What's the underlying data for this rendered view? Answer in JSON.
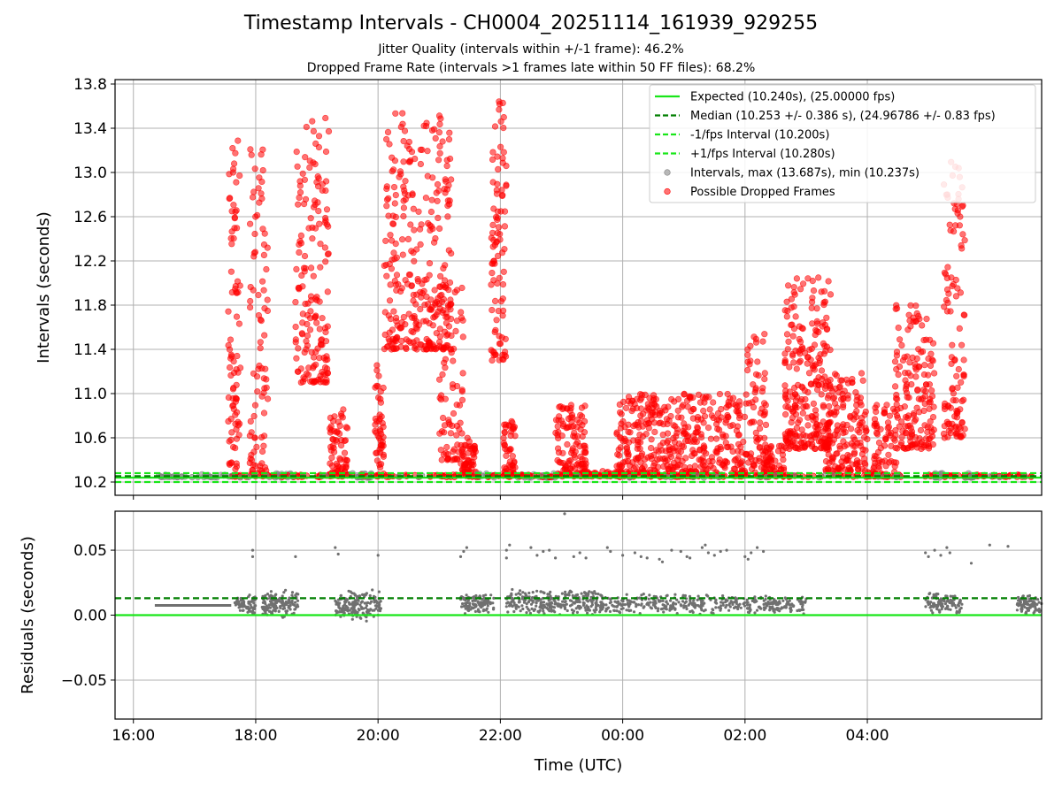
{
  "title": "Timestamp Intervals - CH0004_20251114_161939_929255",
  "subtitle1": "Jitter Quality (intervals within +/-1 frame): 46.2%",
  "subtitle2": "Dropped Frame Rate (intervals >1 frames late within 50 FF files): 68.2%",
  "colors": {
    "expected": "#19e619",
    "median": "#007f00",
    "interval_lines": "#19e619",
    "intervals": "#808080",
    "dropped": "#ff0000",
    "residuals": "#707070"
  },
  "chart_data": [
    {
      "type": "scatter",
      "ylabel": "Intervals (seconds)",
      "x_axis_hours_since_16:00": [
        -0.3,
        14.85
      ],
      "ylim": [
        10.08,
        13.84
      ],
      "yticks": [
        "10.2",
        "10.6",
        "11.0",
        "11.4",
        "11.8",
        "12.2",
        "12.6",
        "13.0",
        "13.4",
        "13.8"
      ],
      "grid": true,
      "legend_position": "top-right",
      "lines": [
        {
          "name": "Expected (10.240s), (25.00000 fps)",
          "y": 10.24,
          "style": "solid"
        },
        {
          "name": "Median (10.253 +/- 0.386 s), (24.96786 +/- 0.83 fps)",
          "y": 10.253,
          "style": "dashed"
        },
        {
          "name": "-1/fps Interval (10.200s)",
          "y": 10.2,
          "style": "dashed"
        },
        {
          "name": "+1/fps Interval (10.280s)",
          "y": 10.28,
          "style": "dashed"
        }
      ],
      "series": [
        {
          "name": "Intervals, max (13.687s), min (10.237s)",
          "marker": "circle",
          "color": "#808080"
        },
        {
          "name": "Possible Dropped Frames",
          "marker": "circle",
          "color": "#ff0000"
        }
      ],
      "clusters_hours_since_16:00": [
        {
          "t0": 0.3,
          "t1": 1.6,
          "ymin": 10.24,
          "ymax": 10.27,
          "n": 20,
          "kind": "grey"
        },
        {
          "t0": 1.55,
          "t1": 1.75,
          "ymin": 10.25,
          "ymax": 13.3,
          "n": 90,
          "kind": "red"
        },
        {
          "t0": 1.9,
          "t1": 2.2,
          "ymin": 10.25,
          "ymax": 13.25,
          "n": 90,
          "kind": "red"
        },
        {
          "t0": 2.2,
          "t1": 2.6,
          "ymin": 10.24,
          "ymax": 10.28,
          "n": 20,
          "kind": "grey"
        },
        {
          "t0": 2.65,
          "t1": 3.2,
          "ymin": 11.1,
          "ymax": 13.5,
          "n": 160,
          "kind": "red"
        },
        {
          "t0": 3.2,
          "t1": 3.5,
          "ymin": 10.25,
          "ymax": 10.9,
          "n": 70,
          "kind": "red"
        },
        {
          "t0": 3.5,
          "t1": 3.9,
          "ymin": 10.24,
          "ymax": 10.28,
          "n": 20,
          "kind": "grey"
        },
        {
          "t0": 3.95,
          "t1": 4.1,
          "ymin": 10.25,
          "ymax": 11.3,
          "n": 50,
          "kind": "red"
        },
        {
          "t0": 4.1,
          "t1": 5.2,
          "ymin": 11.4,
          "ymax": 13.55,
          "n": 300,
          "kind": "red"
        },
        {
          "t0": 5.0,
          "t1": 5.4,
          "ymin": 10.4,
          "ymax": 12.1,
          "n": 80,
          "kind": "red"
        },
        {
          "t0": 5.35,
          "t1": 5.6,
          "ymin": 10.25,
          "ymax": 10.6,
          "n": 60,
          "kind": "red"
        },
        {
          "t0": 5.6,
          "t1": 5.9,
          "ymin": 10.24,
          "ymax": 10.28,
          "n": 15,
          "kind": "grey"
        },
        {
          "t0": 5.85,
          "t1": 6.1,
          "ymin": 11.3,
          "ymax": 13.65,
          "n": 90,
          "kind": "red"
        },
        {
          "t0": 6.05,
          "t1": 6.25,
          "ymin": 10.25,
          "ymax": 10.75,
          "n": 50,
          "kind": "red"
        },
        {
          "t0": 6.25,
          "t1": 6.9,
          "ymin": 10.24,
          "ymax": 10.28,
          "n": 25,
          "kind": "grey"
        },
        {
          "t0": 6.9,
          "t1": 7.4,
          "ymin": 10.25,
          "ymax": 10.9,
          "n": 120,
          "kind": "red"
        },
        {
          "t0": 7.4,
          "t1": 8.0,
          "ymin": 10.25,
          "ymax": 10.3,
          "n": 40,
          "kind": "red"
        },
        {
          "t0": 7.9,
          "t1": 10.0,
          "ymin": 10.25,
          "ymax": 11.0,
          "n": 450,
          "kind": "red"
        },
        {
          "t0": 10.0,
          "t1": 10.35,
          "ymin": 10.25,
          "ymax": 11.55,
          "n": 80,
          "kind": "red"
        },
        {
          "t0": 10.3,
          "t1": 10.65,
          "ymin": 10.25,
          "ymax": 10.55,
          "n": 60,
          "kind": "red"
        },
        {
          "t0": 10.65,
          "t1": 11.4,
          "ymin": 10.5,
          "ymax": 12.05,
          "n": 260,
          "kind": "red"
        },
        {
          "t0": 11.3,
          "t1": 12.0,
          "ymin": 10.3,
          "ymax": 11.2,
          "n": 160,
          "kind": "red"
        },
        {
          "t0": 12.0,
          "t1": 12.15,
          "ymin": 10.25,
          "ymax": 10.3,
          "n": 20,
          "kind": "red"
        },
        {
          "t0": 12.1,
          "t1": 12.5,
          "ymin": 10.25,
          "ymax": 10.9,
          "n": 70,
          "kind": "red"
        },
        {
          "t0": 12.45,
          "t1": 13.1,
          "ymin": 10.5,
          "ymax": 11.8,
          "n": 160,
          "kind": "red"
        },
        {
          "t0": 13.1,
          "t1": 13.3,
          "ymin": 10.24,
          "ymax": 10.28,
          "n": 15,
          "kind": "grey"
        },
        {
          "t0": 13.25,
          "t1": 13.6,
          "ymin": 10.6,
          "ymax": 13.1,
          "n": 110,
          "kind": "red"
        },
        {
          "t0": 13.6,
          "t1": 13.7,
          "ymin": 10.24,
          "ymax": 10.28,
          "n": 10,
          "kind": "grey"
        }
      ]
    },
    {
      "type": "scatter",
      "ylabel": "Residuals (seconds)",
      "xlabel": "Time (UTC)",
      "x_ticks": [
        "16:00",
        "18:00",
        "20:00",
        "22:00",
        "00:00",
        "02:00",
        "04:00"
      ],
      "ylim": [
        -0.08,
        0.08
      ],
      "yticks": [
        "−0.05",
        "0.00",
        "0.05"
      ],
      "grid": true,
      "lines": [
        {
          "name": "zero",
          "y": 0.0,
          "style": "solid"
        },
        {
          "name": "median",
          "y": 0.013,
          "style": "dashed"
        }
      ],
      "flat_segment": {
        "t0": 0.35,
        "t1": 1.6,
        "y": 0.0075
      },
      "clusters_hours_since_16:00": [
        {
          "t0": 1.65,
          "t1": 2.0,
          "ymin": 0.0,
          "ymax": 0.017,
          "n": 70
        },
        {
          "t0": 2.1,
          "t1": 2.7,
          "ymin": -0.002,
          "ymax": 0.02,
          "n": 140
        },
        {
          "t0": 3.3,
          "t1": 4.05,
          "ymin": -0.005,
          "ymax": 0.02,
          "n": 180
        },
        {
          "t0": 5.35,
          "t1": 5.9,
          "ymin": 0.0,
          "ymax": 0.017,
          "n": 120
        },
        {
          "t0": 6.1,
          "t1": 7.6,
          "ymin": 0.0,
          "ymax": 0.02,
          "n": 280
        },
        {
          "t0": 7.6,
          "t1": 10.4,
          "ymin": 0.0,
          "ymax": 0.017,
          "n": 320
        },
        {
          "t0": 10.4,
          "t1": 11.0,
          "ymin": 0.0,
          "ymax": 0.015,
          "n": 80
        },
        {
          "t0": 12.95,
          "t1": 13.55,
          "ymin": 0.0,
          "ymax": 0.018,
          "n": 110
        },
        {
          "t0": 14.45,
          "t1": 14.85,
          "ymin": 0.0,
          "ymax": 0.017,
          "n": 90
        }
      ],
      "outliers": [
        [
          1.95,
          0.05
        ],
        [
          1.95,
          0.045
        ],
        [
          2.65,
          0.045
        ],
        [
          3.3,
          0.052
        ],
        [
          3.35,
          0.047
        ],
        [
          4.0,
          0.046
        ],
        [
          5.35,
          0.045
        ],
        [
          5.4,
          0.049
        ],
        [
          5.45,
          0.052
        ],
        [
          6.1,
          0.05
        ],
        [
          6.15,
          0.054
        ],
        [
          6.1,
          0.044
        ],
        [
          6.5,
          0.052
        ],
        [
          6.6,
          0.046
        ],
        [
          6.7,
          0.049
        ],
        [
          6.8,
          0.05
        ],
        [
          6.9,
          0.044
        ],
        [
          7.05,
          0.078
        ],
        [
          7.2,
          0.045
        ],
        [
          7.3,
          0.048
        ],
        [
          7.4,
          0.044
        ],
        [
          7.75,
          0.052
        ],
        [
          7.8,
          0.049
        ],
        [
          8.0,
          0.046
        ],
        [
          8.2,
          0.048
        ],
        [
          8.3,
          0.045
        ],
        [
          8.4,
          0.044
        ],
        [
          8.6,
          0.043
        ],
        [
          8.65,
          0.041
        ],
        [
          8.8,
          0.05
        ],
        [
          8.95,
          0.049
        ],
        [
          9.05,
          0.045
        ],
        [
          9.1,
          0.044
        ],
        [
          9.3,
          0.052
        ],
        [
          9.35,
          0.054
        ],
        [
          9.4,
          0.048
        ],
        [
          9.5,
          0.046
        ],
        [
          9.6,
          0.049
        ],
        [
          9.7,
          0.05
        ],
        [
          10.0,
          0.045
        ],
        [
          10.05,
          0.043
        ],
        [
          10.1,
          0.048
        ],
        [
          10.2,
          0.052
        ],
        [
          10.3,
          0.049
        ],
        [
          12.95,
          0.048
        ],
        [
          13.0,
          0.045
        ],
        [
          13.1,
          0.05
        ],
        [
          13.2,
          0.046
        ],
        [
          13.3,
          0.052
        ],
        [
          13.35,
          0.048
        ],
        [
          13.7,
          0.04
        ],
        [
          14.0,
          0.054
        ],
        [
          14.3,
          0.053
        ]
      ]
    }
  ]
}
